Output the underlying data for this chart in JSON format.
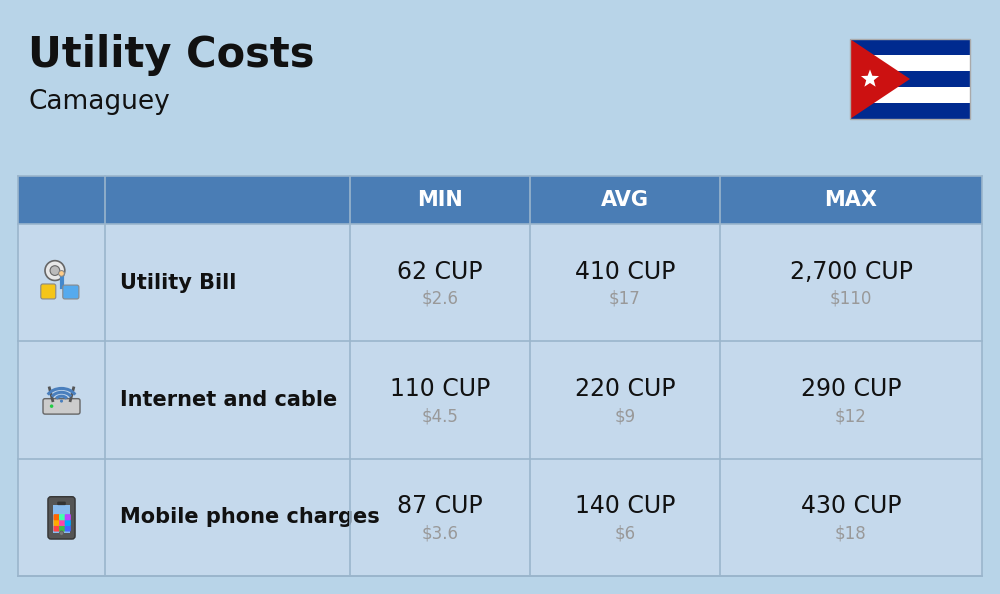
{
  "title": "Utility Costs",
  "subtitle": "Camaguey",
  "background_color": "#b8d4e8",
  "header_color": "#4a7db5",
  "header_text_color": "#ffffff",
  "row_color": "#c5d9ec",
  "icon_col_color": "#b8cfe3",
  "text_color": "#111111",
  "subtext_color": "#999999",
  "col_headers": [
    "MIN",
    "AVG",
    "MAX"
  ],
  "rows": [
    {
      "label": "Utility Bill",
      "min_cup": "62 CUP",
      "min_usd": "$2.6",
      "avg_cup": "410 CUP",
      "avg_usd": "$17",
      "max_cup": "2,700 CUP",
      "max_usd": "$110"
    },
    {
      "label": "Internet and cable",
      "min_cup": "110 CUP",
      "min_usd": "$4.5",
      "avg_cup": "220 CUP",
      "avg_usd": "$9",
      "max_cup": "290 CUP",
      "max_usd": "$12"
    },
    {
      "label": "Mobile phone charges",
      "min_cup": "87 CUP",
      "min_usd": "$3.6",
      "avg_cup": "140 CUP",
      "avg_usd": "$6",
      "max_cup": "430 CUP",
      "max_usd": "$18"
    }
  ],
  "title_fontsize": 30,
  "subtitle_fontsize": 19,
  "header_fontsize": 15,
  "row_label_fontsize": 15,
  "cup_fontsize": 17,
  "usd_fontsize": 12,
  "flag_stripe_colors": [
    "#002a8f",
    "#ffffff",
    "#002a8f",
    "#ffffff",
    "#002a8f"
  ],
  "flag_triangle_color": "#cc1111",
  "line_color": "#9ab5cc"
}
